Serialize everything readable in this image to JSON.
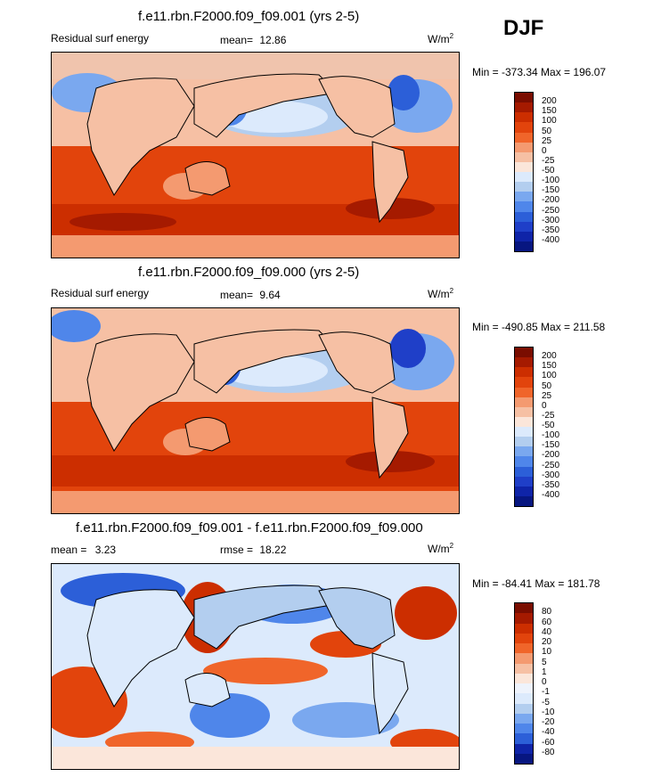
{
  "season": "DJF",
  "units_base": "W/m",
  "units_exp": "2",
  "panels": [
    {
      "title": "f.e11.rbn.F2000.f09_f09.001 (yrs 2-5)",
      "left_label": "Residual surf energy",
      "stat_label": "mean=",
      "stat_value": "12.86",
      "minmax": "Min = -373.34 Max = 196.07",
      "levels": [
        "200",
        "150",
        "100",
        "50",
        "25",
        "0",
        "-25",
        "-50",
        "-100",
        "-150",
        "-200",
        "-250",
        "-300",
        "-350",
        "-400"
      ],
      "colors": [
        "#7a0d00",
        "#a51a00",
        "#cc2e00",
        "#e2440c",
        "#f0652a",
        "#f49a70",
        "#f6c0a4",
        "#fbe6da",
        "#dceafc",
        "#b3ceef",
        "#7aa8ef",
        "#4f86ea",
        "#2c5fd8",
        "#1f3fc8",
        "#0f24a8",
        "#071680"
      ]
    },
    {
      "title": "f.e11.rbn.F2000.f09_f09.000 (yrs 2-5)",
      "left_label": "Residual surf energy",
      "stat_label": "mean=",
      "stat_value": "9.64",
      "minmax": "Min = -490.85 Max = 211.58",
      "levels": [
        "200",
        "150",
        "100",
        "50",
        "25",
        "0",
        "-25",
        "-50",
        "-100",
        "-150",
        "-200",
        "-250",
        "-300",
        "-350",
        "-400"
      ],
      "colors": [
        "#7a0d00",
        "#a51a00",
        "#cc2e00",
        "#e2440c",
        "#f0652a",
        "#f49a70",
        "#f6c0a4",
        "#fbe6da",
        "#dceafc",
        "#b3ceef",
        "#7aa8ef",
        "#4f86ea",
        "#2c5fd8",
        "#1f3fc8",
        "#0f24a8",
        "#071680"
      ]
    },
    {
      "title": "f.e11.rbn.F2000.f09_f09.001 - f.e11.rbn.F2000.f09_f09.000",
      "mean_label": "mean =",
      "mean_value": "3.23",
      "rmse_label": "rmse =",
      "rmse_value": "18.22",
      "minmax": "Min = -84.41 Max = 181.78",
      "levels": [
        "80",
        "60",
        "40",
        "20",
        "10",
        "5",
        "1",
        "0",
        "-1",
        "-5",
        "-10",
        "-20",
        "-40",
        "-60",
        "-80"
      ],
      "colors": [
        "#7a0d00",
        "#a51a00",
        "#cc2e00",
        "#e2440c",
        "#f0652a",
        "#f49a70",
        "#f6c0a4",
        "#fbe6da",
        "#eef3fc",
        "#dceafc",
        "#b3ceef",
        "#7aa8ef",
        "#4f86ea",
        "#2c5fd8",
        "#0f24a8",
        "#071680"
      ]
    }
  ],
  "chart_data": [
    {
      "type": "heatmap",
      "title": "f.e11.rbn.F2000.f09_f09.001 (yrs 2-5)",
      "variable": "Residual surf energy",
      "mean": 12.86,
      "min": -373.34,
      "max": 196.07,
      "contour_levels": [
        200,
        150,
        100,
        50,
        25,
        0,
        -25,
        -50,
        -100,
        -150,
        -200,
        -250,
        -300,
        -350,
        -400
      ]
    },
    {
      "type": "heatmap",
      "title": "f.e11.rbn.F2000.f09_f09.000 (yrs 2-5)",
      "variable": "Residual surf energy",
      "mean": 9.64,
      "min": -490.85,
      "max": 211.58,
      "contour_levels": [
        200,
        150,
        100,
        50,
        25,
        0,
        -25,
        -50,
        -100,
        -150,
        -200,
        -250,
        -300,
        -350,
        -400
      ]
    },
    {
      "type": "heatmap",
      "title": "f.e11.rbn.F2000.f09_f09.001 - f.e11.rbn.F2000.f09_f09.000",
      "mean": 3.23,
      "rmse": 18.22,
      "min": -84.41,
      "max": 181.78,
      "contour_levels": [
        80,
        60,
        40,
        20,
        10,
        5,
        1,
        0,
        -1,
        -5,
        -10,
        -20,
        -40,
        -60,
        -80
      ]
    }
  ]
}
